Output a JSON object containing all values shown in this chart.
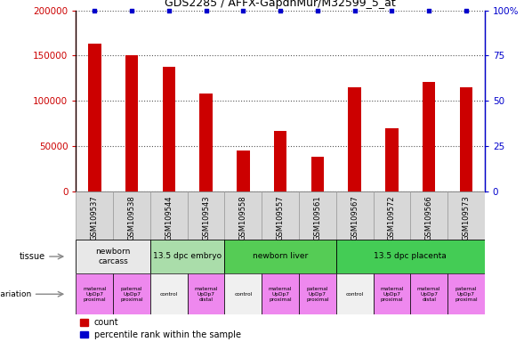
{
  "title": "GDS2285 / AFFX-GapdhMur/M32599_5_at",
  "samples": [
    "GSM109537",
    "GSM109538",
    "GSM109544",
    "GSM109543",
    "GSM109558",
    "GSM109557",
    "GSM109561",
    "GSM109567",
    "GSM109572",
    "GSM109566",
    "GSM109573"
  ],
  "counts": [
    163000,
    150000,
    138000,
    108000,
    45000,
    67000,
    38000,
    115000,
    70000,
    121000,
    115000
  ],
  "percentile_ranks": [
    100,
    100,
    100,
    100,
    100,
    100,
    100,
    100,
    100,
    100,
    100
  ],
  "bar_color": "#cc0000",
  "dot_color": "#0000cc",
  "ylim_left": [
    0,
    200000
  ],
  "ylim_right": [
    0,
    100
  ],
  "yticks_left": [
    0,
    50000,
    100000,
    150000,
    200000
  ],
  "yticks_right": [
    0,
    25,
    50,
    75,
    100
  ],
  "ytick_labels_left": [
    "0",
    "50000",
    "100000",
    "150000",
    "200000"
  ],
  "ytick_labels_right": [
    "0",
    "25",
    "50",
    "75",
    "100%"
  ],
  "tissue_groups_draw": [
    {
      "label": "newborn\ncarcass",
      "cols": [
        0,
        1
      ],
      "color": "#e8e8e8"
    },
    {
      "label": "13.5 dpc embryo",
      "cols": [
        2,
        3
      ],
      "color": "#aaddaa"
    },
    {
      "label": "newborn liver",
      "cols": [
        4,
        5,
        6
      ],
      "color": "#55cc55"
    },
    {
      "label": "13.5 dpc placenta",
      "cols": [
        7,
        8,
        9,
        10
      ],
      "color": "#44cc55"
    }
  ],
  "genotype_groups_draw": [
    {
      "label": "maternal\nUpDp7\nproximal",
      "col": 0,
      "color": "#ee88ee"
    },
    {
      "label": "paternal\nUpDp7\nproximal",
      "col": 1,
      "color": "#ee88ee"
    },
    {
      "label": "control",
      "col": 2,
      "color": "#f0f0f0"
    },
    {
      "label": "maternal\nUpDp7\ndistal",
      "col": 3,
      "color": "#ee88ee"
    },
    {
      "label": "control",
      "col": 4,
      "color": "#f0f0f0"
    },
    {
      "label": "maternal\nUpDp7\nproximal",
      "col": 5,
      "color": "#ee88ee"
    },
    {
      "label": "paternal\nUpDp7\nproximal",
      "col": 6,
      "color": "#ee88ee"
    },
    {
      "label": "control",
      "col": 7,
      "color": "#f0f0f0"
    },
    {
      "label": "maternal\nUpDp7\nproximal",
      "col": 8,
      "color": "#ee88ee"
    },
    {
      "label": "maternal\nUpDp7\ndistal",
      "col": 9,
      "color": "#ee88ee"
    },
    {
      "label": "paternal\nUpDp7\nproximal",
      "col": 10,
      "color": "#ee88ee"
    }
  ]
}
